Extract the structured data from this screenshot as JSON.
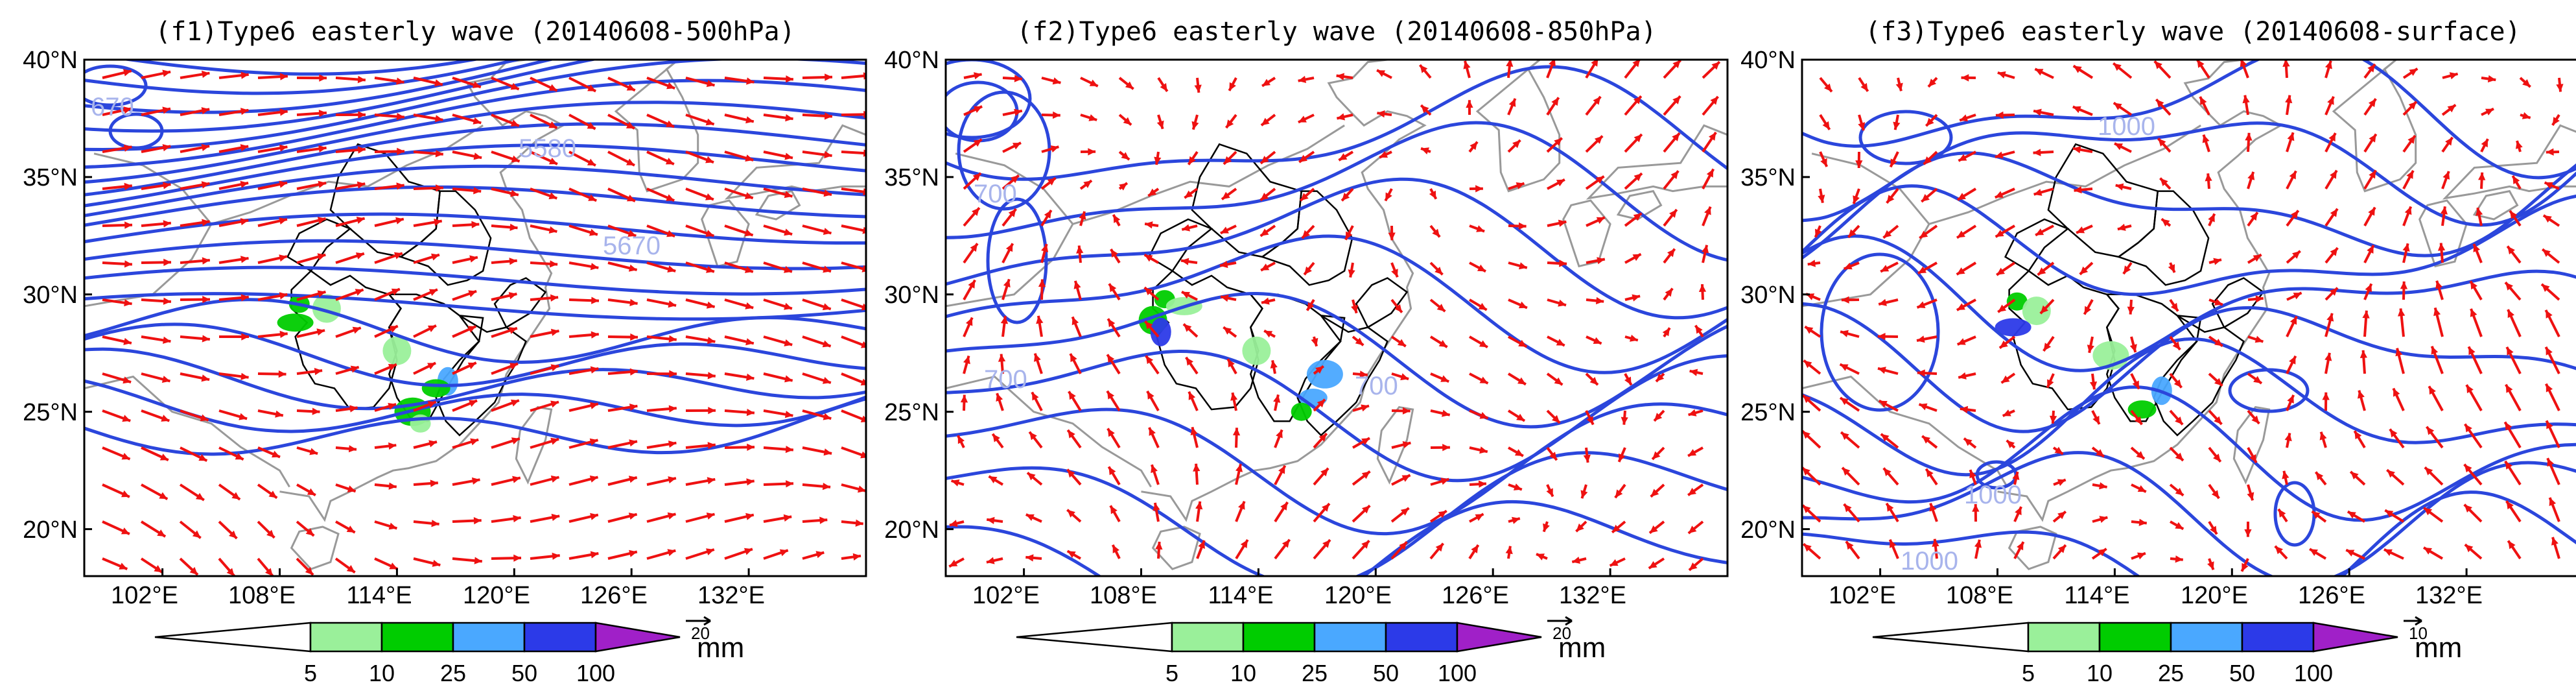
{
  "figure": {
    "panels": [
      {
        "id": "f1",
        "title": "(f1)Type6 easterly wave (20140608-500hPa)",
        "contour_labels": [
          "670",
          "5580",
          "5670"
        ],
        "ref_vector_label": "20",
        "wind_bias": {
          "u": 6,
          "v": -0.6
        },
        "rain_patches": [
          {
            "lon": 109.0,
            "lat": 29.6,
            "level": "10-25"
          },
          {
            "lon": 110.4,
            "lat": 29.4,
            "level": "5-10"
          },
          {
            "lon": 108.8,
            "lat": 28.8,
            "level": "10-25"
          },
          {
            "lon": 116.6,
            "lat": 26.3,
            "level": "25-50"
          },
          {
            "lon": 116.0,
            "lat": 26.0,
            "level": "10-25"
          },
          {
            "lon": 114.8,
            "lat": 25.0,
            "level": "10-25"
          },
          {
            "lon": 115.2,
            "lat": 24.5,
            "level": "5-10"
          },
          {
            "lon": 114.0,
            "lat": 27.6,
            "level": "5-10"
          }
        ]
      },
      {
        "id": "f2",
        "title": "(f2)Type6 easterly wave (20140608-850hPa)",
        "contour_labels": [
          "700",
          "700",
          "700"
        ],
        "ref_vector_label": "20",
        "wind_bias": {
          "u": 0.5,
          "v": 1.0
        },
        "rain_patches": [
          {
            "lon": 109.2,
            "lat": 29.8,
            "level": "10-25"
          },
          {
            "lon": 108.6,
            "lat": 28.9,
            "level": "10-25"
          },
          {
            "lon": 110.2,
            "lat": 29.5,
            "level": "5-10"
          },
          {
            "lon": 109.0,
            "lat": 28.4,
            "level": "50-100"
          },
          {
            "lon": 116.8,
            "lat": 25.6,
            "level": "25-50"
          },
          {
            "lon": 117.4,
            "lat": 26.6,
            "level": "25-50"
          },
          {
            "lon": 116.2,
            "lat": 25.0,
            "level": "10-25"
          },
          {
            "lon": 113.9,
            "lat": 27.6,
            "level": "5-10"
          }
        ]
      },
      {
        "id": "f3",
        "title": "(f3)Type6 easterly wave (20140608-surface)",
        "contour_labels": [
          "1000",
          "1000",
          "1000"
        ],
        "ref_vector_label": "10",
        "wind_bias": {
          "u": -0.8,
          "v": 0.6
        },
        "rain_patches": [
          {
            "lon": 109.0,
            "lat": 29.7,
            "level": "10-25"
          },
          {
            "lon": 110.0,
            "lat": 29.3,
            "level": "5-10"
          },
          {
            "lon": 108.8,
            "lat": 28.6,
            "level": "50-100"
          },
          {
            "lon": 116.4,
            "lat": 25.9,
            "level": "25-50"
          },
          {
            "lon": 115.4,
            "lat": 25.1,
            "level": "10-25"
          },
          {
            "lon": 113.8,
            "lat": 27.4,
            "level": "5-10"
          }
        ]
      }
    ],
    "axes": {
      "lon_ticks": [
        "102°E",
        "108°E",
        "114°E",
        "120°E",
        "126°E",
        "132°E"
      ],
      "lon_values": [
        102,
        108,
        114,
        120,
        126,
        132
      ],
      "lat_ticks": [
        "20°N",
        "25°N",
        "30°N",
        "35°N",
        "40°N"
      ],
      "lat_values": [
        20,
        25,
        30,
        35,
        40
      ],
      "lon_range": [
        98,
        138
      ],
      "lat_range": [
        18,
        40
      ]
    },
    "colorbar": {
      "boundaries": [
        "5",
        "10",
        "25",
        "50",
        "100"
      ],
      "unit": "mm",
      "fill_colors": [
        "#ffffff",
        "#9af09a",
        "#00cc00",
        "#4aa8ff",
        "#2c3ae8",
        "#a020c8"
      ]
    },
    "colors": {
      "contour": "#2b46dc",
      "wind_vector": "#ee1111",
      "coastline": "#999999",
      "province_border": "#000000",
      "contour_label": "#a8b4ec"
    }
  }
}
